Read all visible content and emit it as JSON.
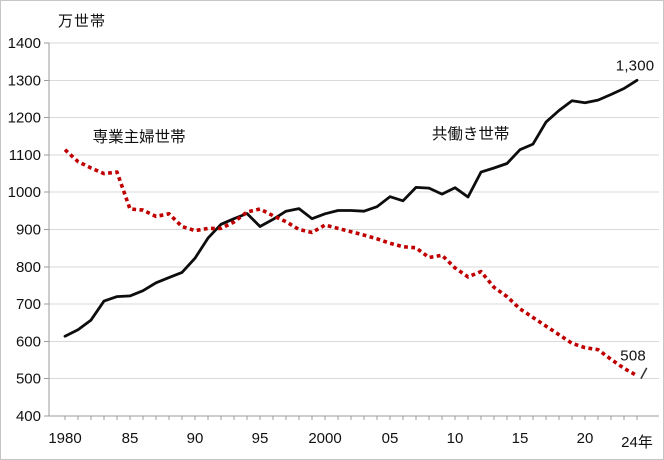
{
  "chart_data": {
    "type": "line",
    "unit_label": "万世帯",
    "xlabel": "",
    "ylabel": "万世帯",
    "ylim": [
      400,
      1400
    ],
    "ytick_step": 100,
    "x_start": 1980,
    "x_end": 2024,
    "grid": true,
    "legend_position": "inline-annotations",
    "colors": {
      "dual_income_line": "#0d0d0d",
      "housewife_line": "#c00000",
      "gridline": "#d9d9d9",
      "axis": "#9b9b9b",
      "text": "#111111"
    },
    "xtick_labels": [
      {
        "year": 1980,
        "label": "1980",
        "dy": 0
      },
      {
        "year": 1985,
        "label": "85",
        "dy": 0
      },
      {
        "year": 1990,
        "label": "90",
        "dy": 0
      },
      {
        "year": 1995,
        "label": "95",
        "dy": 0
      },
      {
        "year": 2000,
        "label": "2000",
        "dy": 0
      },
      {
        "year": 2005,
        "label": "05",
        "dy": 0
      },
      {
        "year": 2010,
        "label": "10",
        "dy": 0
      },
      {
        "year": 2015,
        "label": "15",
        "dy": 0
      },
      {
        "year": 2020,
        "label": "20",
        "dy": 0
      },
      {
        "year": 2024,
        "label": "24年",
        "dy": 4
      }
    ],
    "series": [
      {
        "name": "共働き世帯",
        "style": "solid",
        "color": "#0d0d0d",
        "values": [
          614,
          631,
          657,
          708,
          720,
          722,
          736,
          757,
          771,
          785,
          823,
          877,
          914,
          929,
          943,
          908,
          927,
          949,
          956,
          929,
          942,
          951,
          951,
          949,
          961,
          988,
          977,
          1013,
          1011,
          995,
          1012,
          987,
          1054,
          1065,
          1077,
          1114,
          1129,
          1188,
          1219,
          1245,
          1240,
          1247,
          1262,
          1278,
          1300
        ]
      },
      {
        "name": "専業主婦世帯",
        "style": "dotted",
        "color": "#c00000",
        "values": [
          1114,
          1082,
          1065,
          1050,
          1054,
          955,
          952,
          935,
          942,
          908,
          897,
          903,
          903,
          920,
          947,
          955,
          937,
          921,
          900,
          892,
          912,
          903,
          894,
          885,
          875,
          863,
          854,
          851,
          825,
          831,
          797,
          773,
          787,
          745,
          720,
          687,
          664,
          641,
          618,
          595,
          583,
          578,
          552,
          528,
          508
        ]
      }
    ],
    "annotations": {
      "housewife_label": {
        "text": "専業主婦世帯",
        "year": 1985.7,
        "value": 1152
      },
      "dual_income_label": {
        "text": "共働き世帯",
        "year": 2011.2,
        "value": 1160
      },
      "end_value_top": {
        "text": "1,300",
        "year": 2023.85,
        "value": 1338
      },
      "end_value_bottom": {
        "text": "508",
        "year": 2023.7,
        "value": 562
      },
      "end_tick": {
        "year1": 2024.3,
        "value1": 500,
        "year2": 2024.75,
        "value2": 529
      }
    }
  }
}
